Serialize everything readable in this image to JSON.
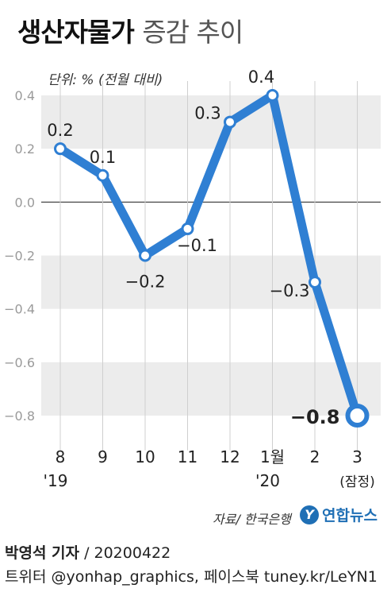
{
  "header": {
    "title_bold": "생산자물가",
    "title_light": "증감 추이",
    "unit": "단위: % (전월 대비)"
  },
  "chart_data": {
    "type": "line",
    "title": "생산자물가 증감 추이",
    "unit_label": "단위: % (전월 대비)",
    "categories": [
      "8",
      "9",
      "10",
      "11",
      "12",
      "1월",
      "2",
      "3"
    ],
    "category_sublabels": [
      "'19",
      "",
      "",
      "",
      "",
      "'20",
      "",
      "(잠정)"
    ],
    "values": [
      0.2,
      0.1,
      -0.2,
      -0.1,
      0.3,
      0.4,
      -0.3,
      -0.8
    ],
    "data_labels": [
      "0.2",
      "0.1",
      "−0.2",
      "−0.1",
      "0.3",
      "0.4",
      "−0.3",
      "−0.8"
    ],
    "ylim": [
      -0.9,
      0.4
    ],
    "yticks": [
      0.4,
      0.2,
      0.0,
      -0.2,
      -0.4,
      -0.6,
      -0.8
    ],
    "ytick_labels": [
      "0.4",
      "0.2",
      "0.0",
      "−0.2",
      "−0.4",
      "−0.6",
      "−0.8"
    ],
    "grid_bands": true,
    "line_color": "#2f7fd3",
    "band_color": "#ececec",
    "highlight_last": true
  },
  "footer": {
    "source": "자료/ 한국은행",
    "logo_text": "연합뉴스",
    "logo_mark": "Y",
    "credit_name": "박영석 기자",
    "credit_date": "/ 20200422",
    "social": "트위터 @yonhap_graphics, 페이스북 tuney.kr/LeYN1"
  }
}
